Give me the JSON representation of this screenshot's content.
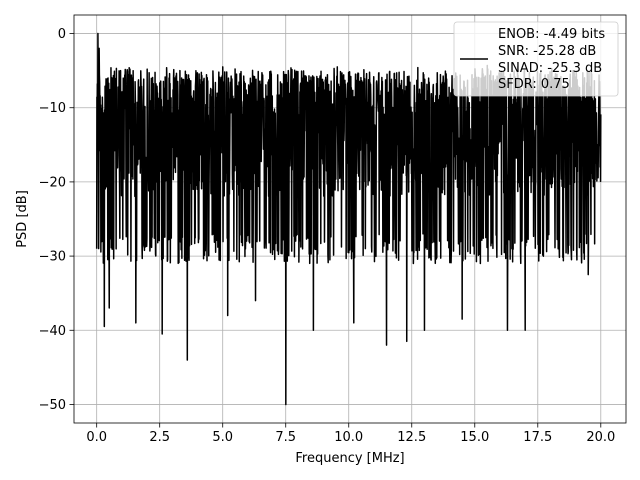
{
  "chart_data": {
    "type": "line",
    "title": "",
    "xlabel": "Frequency [MHz]",
    "ylabel": "PSD [dB]",
    "xlim": [
      -0.9,
      21.0
    ],
    "ylim": [
      -52.5,
      2.5
    ],
    "xticks": [
      0.0,
      2.5,
      5.0,
      7.5,
      10.0,
      12.5,
      15.0,
      17.5,
      20.0
    ],
    "xtick_labels": [
      "0.0",
      "2.5",
      "5.0",
      "7.5",
      "10.0",
      "12.5",
      "15.0",
      "17.5",
      "20.0"
    ],
    "yticks": [
      0,
      -10,
      -20,
      -30,
      -40,
      -50
    ],
    "ytick_labels": [
      "0",
      "−10",
      "−20",
      "−30",
      "−40",
      "−50"
    ],
    "grid": true,
    "legend_position": "top-right",
    "legend_entries": [
      "ENOB: -4.49 bits",
      "SNR: -25.28 dB",
      "SINAD: -25.3 dB",
      "SFDR: 0.75"
    ],
    "series": [
      {
        "color": "#000000",
        "x_start": 0.0,
        "x_end": 20.0,
        "n_points": 2048,
        "y_min": -50.0,
        "y_max": 0.0,
        "typical_range": [
          -30,
          -5
        ],
        "peaks": [
          {
            "x": 0.05,
            "y": 0.0
          },
          {
            "x": 0.1,
            "y": -2.0
          },
          {
            "x": 0.45,
            "y": -6.0
          },
          {
            "x": 0.95,
            "y": -5.0
          },
          {
            "x": 2.0,
            "y": -4.8
          },
          {
            "x": 3.3,
            "y": -5.0
          },
          {
            "x": 5.0,
            "y": -4.5
          },
          {
            "x": 7.6,
            "y": -5.0
          },
          {
            "x": 9.55,
            "y": -4.5
          },
          {
            "x": 11.9,
            "y": -5.3
          },
          {
            "x": 15.5,
            "y": -4.3
          },
          {
            "x": 16.7,
            "y": -4.5
          },
          {
            "x": 18.9,
            "y": -5.0
          }
        ],
        "dips": [
          {
            "x": 0.3,
            "y": -39.5
          },
          {
            "x": 0.5,
            "y": -37.0
          },
          {
            "x": 1.55,
            "y": -39.0
          },
          {
            "x": 2.6,
            "y": -40.5
          },
          {
            "x": 3.6,
            "y": -44.0
          },
          {
            "x": 5.2,
            "y": -38.0
          },
          {
            "x": 6.3,
            "y": -36.0
          },
          {
            "x": 7.5,
            "y": -50.0
          },
          {
            "x": 8.6,
            "y": -40.0
          },
          {
            "x": 10.2,
            "y": -39.0
          },
          {
            "x": 11.5,
            "y": -42.0
          },
          {
            "x": 12.3,
            "y": -41.5
          },
          {
            "x": 13.0,
            "y": -40.0
          },
          {
            "x": 14.5,
            "y": -38.5
          },
          {
            "x": 16.3,
            "y": -40.0
          },
          {
            "x": 17.0,
            "y": -40.0
          },
          {
            "x": 19.5,
            "y": -32.5
          }
        ]
      }
    ]
  }
}
